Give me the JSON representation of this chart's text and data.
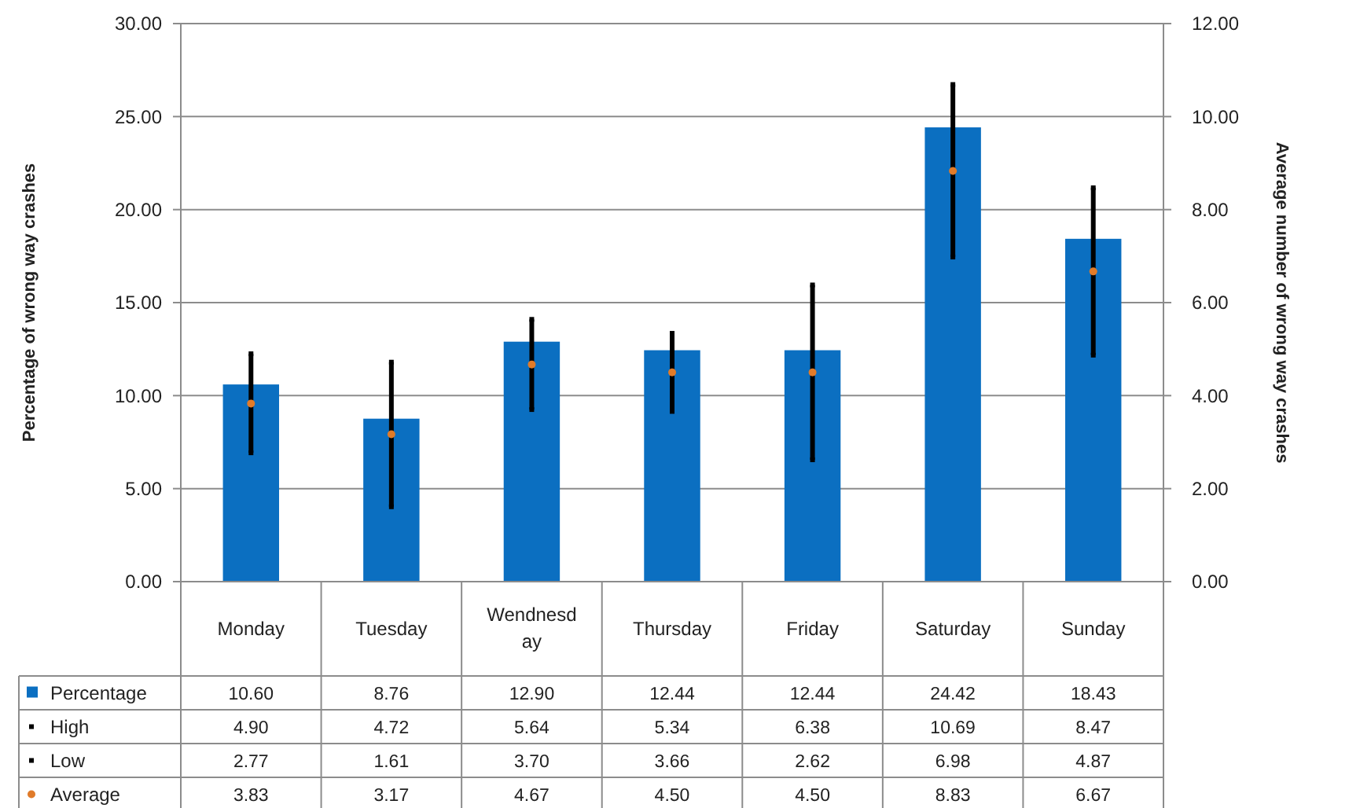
{
  "chart_data": {
    "type": "bar",
    "ylabel": "Percentage of wrong way crashes",
    "y2label": "Average number of wrong way crashes",
    "categories": [
      "Monday",
      "Tuesday",
      "Wendnesday",
      "Thursday",
      "Friday",
      "Saturday",
      "Sunday"
    ],
    "series": [
      {
        "name": "Percentage",
        "color": "#0b6fc1",
        "values": [
          10.6,
          8.76,
          12.9,
          12.44,
          12.44,
          24.42,
          18.43
        ],
        "value_labels": [
          "10.60",
          "8.76",
          "12.90",
          "12.44",
          "12.44",
          "24.42",
          "18.43"
        ]
      },
      {
        "name": "High",
        "type": "scatter",
        "axis": "y2",
        "marker": "square",
        "color": "#000000",
        "values": [
          4.9,
          4.72,
          5.64,
          5.34,
          6.38,
          10.69,
          8.47
        ],
        "value_labels": [
          "4.90",
          "4.72",
          "5.64",
          "5.34",
          "6.38",
          "10.69",
          "8.47"
        ]
      },
      {
        "name": "Low",
        "type": "scatter",
        "axis": "y2",
        "marker": "square",
        "color": "#000000",
        "values": [
          2.77,
          1.61,
          3.7,
          3.66,
          2.62,
          6.98,
          4.87
        ],
        "value_labels": [
          "2.77",
          "1.61",
          "3.70",
          "3.66",
          "2.62",
          "6.98",
          "4.87"
        ]
      },
      {
        "name": "Average",
        "type": "scatter",
        "axis": "y2",
        "marker": "circle",
        "color": "#e07b2a",
        "values": [
          3.83,
          3.17,
          4.67,
          4.5,
          4.5,
          8.83,
          6.67
        ],
        "value_labels": [
          "3.83",
          "3.17",
          "4.67",
          "4.50",
          "4.50",
          "8.83",
          "6.67"
        ]
      }
    ],
    "ylim": [
      0,
      30
    ],
    "yticks": [
      {
        "value": 0,
        "label": "0.00"
      },
      {
        "value": 5,
        "label": "5.00"
      },
      {
        "value": 10,
        "label": "10.00"
      },
      {
        "value": 15,
        "label": "15.00"
      },
      {
        "value": 20,
        "label": "20.00"
      },
      {
        "value": 25,
        "label": "25.00"
      },
      {
        "value": 30,
        "label": "30.00"
      }
    ],
    "y2lim": [
      0,
      12
    ],
    "y2ticks": [
      {
        "value": 0,
        "label": "0.00"
      },
      {
        "value": 2,
        "label": "2.00"
      },
      {
        "value": 4,
        "label": "4.00"
      },
      {
        "value": 6,
        "label": "6.00"
      },
      {
        "value": 8,
        "label": "8.00"
      },
      {
        "value": 10,
        "label": "10.00"
      },
      {
        "value": 12,
        "label": "12.00"
      }
    ],
    "grid": "y",
    "legend": "bottom"
  }
}
